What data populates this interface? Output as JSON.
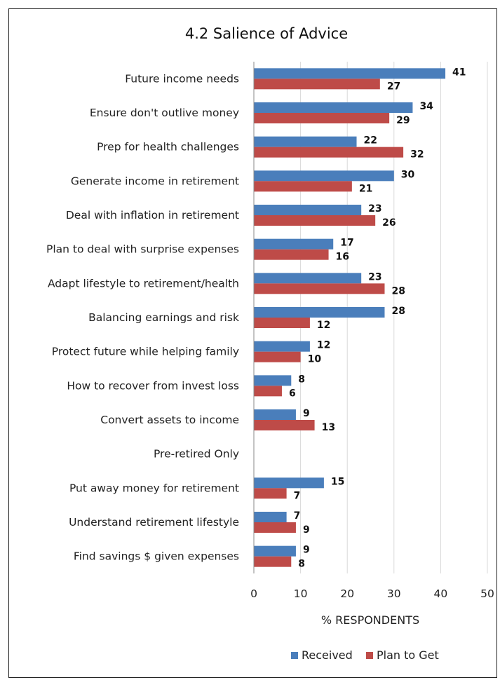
{
  "chart_data": {
    "type": "bar",
    "orientation": "horizontal",
    "title": "4.2 Salience of Advice",
    "xlabel": "% RESPONDENTS",
    "ylabel": "",
    "xlim": [
      0,
      50
    ],
    "x_ticks": [
      0,
      10,
      20,
      30,
      40,
      50
    ],
    "grid": "vertical",
    "legend_position": "bottom",
    "categories": [
      "Future income needs",
      "Ensure don't outlive money",
      "Prep for health challenges",
      "Generate income in retirement",
      "Deal with inflation in retirement",
      "Plan to deal with surprise expenses",
      "Adapt lifestyle to retirement/health",
      "Balancing earnings and risk",
      "Protect future while helping family",
      "How to recover from invest loss",
      "Convert assets to income",
      "Pre-retired Only",
      "Put away money for retirement",
      "Understand retirement lifestyle",
      "Find savings $ given expenses"
    ],
    "series": [
      {
        "name": "Received",
        "color": "#4a7ebb",
        "values": [
          41,
          34,
          22,
          30,
          23,
          17,
          23,
          28,
          12,
          8,
          9,
          null,
          15,
          7,
          9
        ],
        "labels": [
          "41",
          "34",
          "22",
          "30",
          "23",
          "17",
          "23",
          "28",
          "12",
          "8",
          "9",
          "",
          "15",
          "7",
          "9"
        ]
      },
      {
        "name": "Plan to Get",
        "color": "#be4b48",
        "values": [
          27,
          29,
          32,
          21,
          26,
          16,
          28,
          12,
          10,
          6,
          13,
          null,
          7,
          9,
          8
        ],
        "labels": [
          "27",
          "29",
          "32",
          "21",
          "26",
          "16",
          "28",
          "12",
          "10",
          "6",
          "13",
          "",
          "7",
          "9",
          "8"
        ]
      }
    ]
  }
}
